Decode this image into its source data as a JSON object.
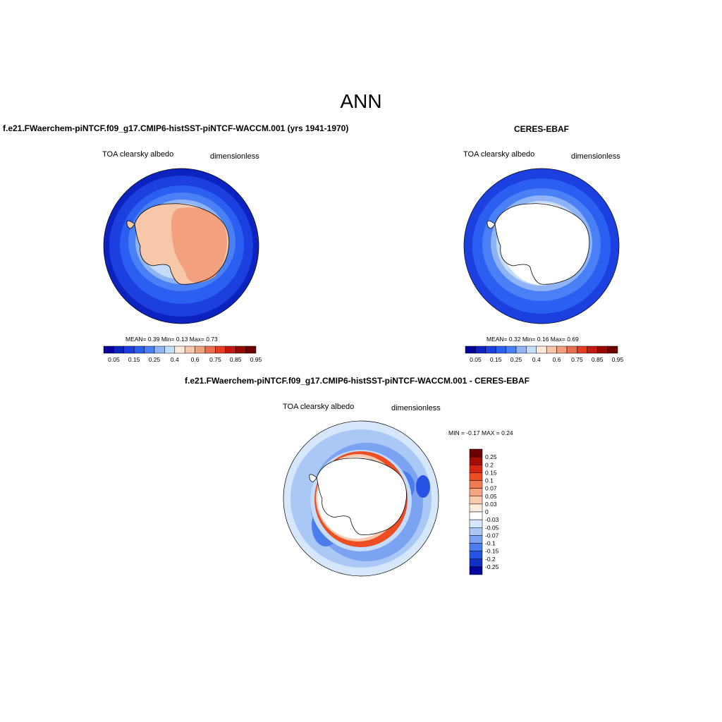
{
  "header": {
    "season": "ANN"
  },
  "panels": {
    "model": {
      "title": "f.e21.FWaerchem-piNTCF.f09_g17.CMIP6-histSST-piNTCF-WACCM.001 (yrs 1941-1970)",
      "variable": "TOA clearsky albedo",
      "units": "dimensionless",
      "stats": {
        "mean_label": "MEAN=",
        "mean": "0.39",
        "min_label": "Min=",
        "min": "0.13",
        "max_label": "Max=",
        "max": "0.73"
      }
    },
    "obs": {
      "title": "CERES-EBAF",
      "variable": "TOA clearsky albedo",
      "units": "dimensionless",
      "stats": {
        "mean_label": "MEAN=",
        "mean": "0.32",
        "min_label": "Min=",
        "min": "0.16",
        "max_label": "Max=",
        "max": "0.69"
      }
    },
    "diff": {
      "title": "f.e21.FWaerchem-piNTCF.f09_g17.CMIP6-histSST-piNTCF-WACCM.001 - CERES-EBAF",
      "variable": "TOA clearsky albedo",
      "units": "dimensionless",
      "stats_text": "MIN =  -0.17 MAX =   0.24"
    }
  },
  "colorbar_abs": {
    "colors": [
      "#06069c",
      "#0d23c0",
      "#1c3fe0",
      "#2a5ff2",
      "#4a80f5",
      "#8eb4f7",
      "#c6dcfb",
      "#fdeadb",
      "#f7c7a9",
      "#f2a07d",
      "#ec6d4d",
      "#e23e22",
      "#c21a10",
      "#970a06",
      "#6e0000"
    ],
    "tick_labels": [
      "0.05",
      "0.15",
      "0.25",
      "0.4",
      "0.6",
      "0.75",
      "0.85",
      "0.95"
    ]
  },
  "colorbar_diff": {
    "colors": [
      "#6e0000",
      "#a50e06",
      "#d6260f",
      "#ec4d22",
      "#f27a52",
      "#f5a27f",
      "#f9c9ad",
      "#fcebdc",
      "#ffffff",
      "#d6e6fb",
      "#a9c8f6",
      "#7ca3f1",
      "#4c7ded",
      "#2752e3",
      "#0f2fc7",
      "#04049a"
    ],
    "tick_labels": [
      "0.25",
      "0.2",
      "0.15",
      "0.1",
      "0.07",
      "0.05",
      "0.03",
      "0",
      "-0.03",
      "-0.05",
      "-0.07",
      "-0.1",
      "-0.15",
      "-0.2",
      "-0.25"
    ]
  }
}
